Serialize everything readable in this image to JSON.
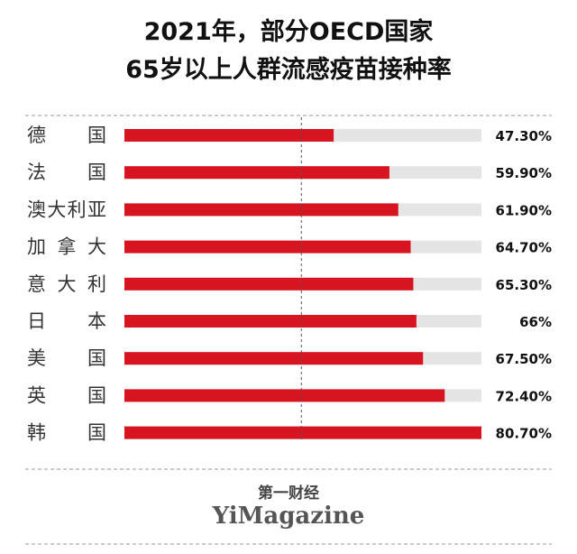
{
  "chart_data": {
    "type": "bar",
    "orientation": "horizontal",
    "title_lines": [
      "2021年，部分OECD国家",
      "65岁以上人群流感疫苗接种率"
    ],
    "categories": [
      "德国",
      "法国",
      "澳大利亚",
      "加拿大",
      "意大利",
      "日本",
      "美国",
      "英国",
      "韩国"
    ],
    "values": [
      47.3,
      59.9,
      61.9,
      64.7,
      65.3,
      66,
      67.5,
      72.4,
      80.7
    ],
    "value_labels": [
      "47.30%",
      "59.90%",
      "61.90%",
      "64.70%",
      "65.30%",
      "66%",
      "67.50%",
      "72.40%",
      "80.70%"
    ],
    "color": "#d7141f",
    "track_color": "#e5e5e5",
    "xlim": [
      0,
      80.7
    ],
    "reference_line": 40,
    "source": {
      "cn": "第一财经",
      "en": "YiMagazine"
    }
  }
}
